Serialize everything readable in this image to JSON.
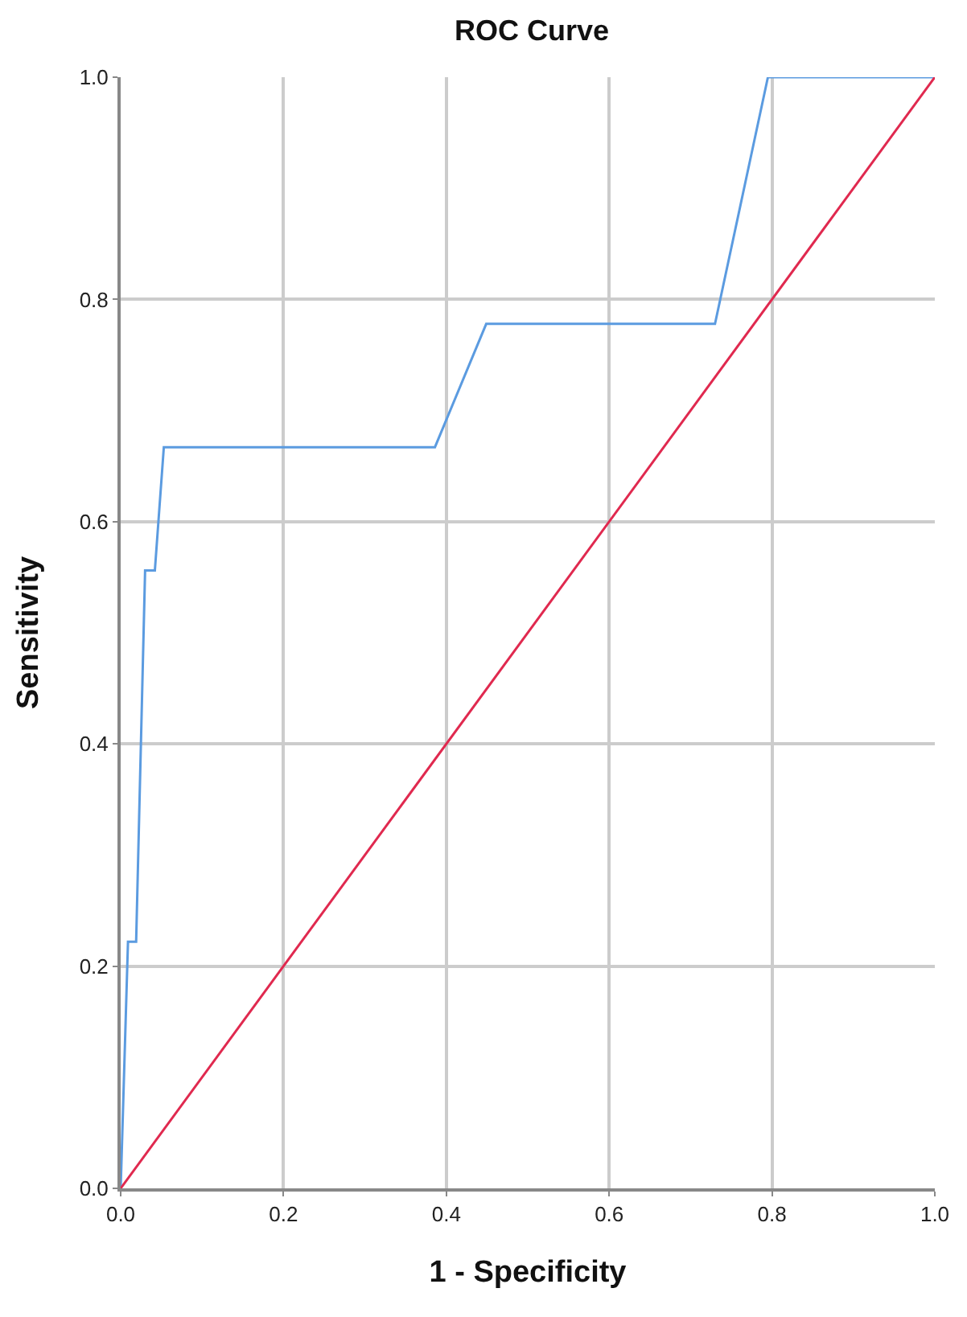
{
  "chart_data": {
    "type": "line",
    "title": "ROC Curve",
    "xlabel": "1 - Specificity",
    "ylabel": "Sensitivity",
    "series": [
      {
        "color": "#5b9be0",
        "x": [
          0,
          0.009,
          0.019,
          0.03,
          0.042,
          0.053,
          0.386,
          0.449,
          0.73,
          0.795,
          1
        ],
        "values": [
          0,
          0.222,
          0.222,
          0.556,
          0.556,
          0.667,
          0.667,
          0.778,
          0.778,
          1,
          1
        ]
      },
      {
        "color": "#e0294f",
        "x": [
          0,
          1
        ],
        "values": [
          0,
          1
        ]
      }
    ],
    "xlim": [
      0,
      1
    ],
    "ylim": [
      0,
      1
    ],
    "xticks": [
      {
        "value": 0,
        "label": "0.0"
      },
      0.2,
      0.4,
      0.6,
      0.8,
      {
        "value": 1,
        "label": "1.0"
      }
    ],
    "yticks": [
      {
        "value": 0,
        "label": "0.0"
      },
      0.2,
      0.4,
      0.6,
      0.8,
      {
        "value": 1,
        "label": "1.0"
      }
    ],
    "grid": true,
    "marker": "none",
    "line_style": "solid"
  }
}
